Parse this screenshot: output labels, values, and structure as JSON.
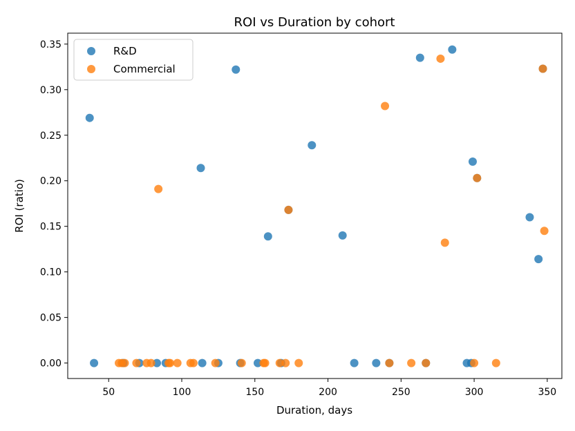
{
  "colors": {
    "rd": "#1f77b4",
    "commercial": "#ff7f0e"
  },
  "chart_data": {
    "type": "scatter",
    "title": "ROI vs Duration by cohort",
    "xlabel": "Duration, days",
    "ylabel": "ROI (ratio)",
    "xlim": [
      22,
      360
    ],
    "ylim": [
      -0.017,
      0.362
    ],
    "xticks": [
      50,
      100,
      150,
      200,
      250,
      300,
      350
    ],
    "yticks": [
      0.0,
      0.05,
      0.1,
      0.15,
      0.2,
      0.25,
      0.3,
      0.35
    ],
    "xtick_labels": [
      "50",
      "100",
      "150",
      "200",
      "250",
      "300",
      "350"
    ],
    "ytick_labels": [
      "0.00",
      "0.05",
      "0.10",
      "0.15",
      "0.20",
      "0.25",
      "0.30",
      "0.35"
    ],
    "legend_position": "upper-left",
    "grid": false,
    "series": [
      {
        "name": "R&D",
        "color": "#1f77b4",
        "points": [
          {
            "x": 37,
            "y": 0.269
          },
          {
            "x": 40,
            "y": 0.0
          },
          {
            "x": 60,
            "y": 0.0
          },
          {
            "x": 71,
            "y": 0.0
          },
          {
            "x": 83,
            "y": 0.0
          },
          {
            "x": 89,
            "y": 0.0
          },
          {
            "x": 113,
            "y": 0.214
          },
          {
            "x": 114,
            "y": 0.0
          },
          {
            "x": 125,
            "y": 0.0
          },
          {
            "x": 137,
            "y": 0.322
          },
          {
            "x": 140,
            "y": 0.0
          },
          {
            "x": 152,
            "y": 0.0
          },
          {
            "x": 159,
            "y": 0.139
          },
          {
            "x": 168,
            "y": 0.0
          },
          {
            "x": 173,
            "y": 0.168
          },
          {
            "x": 189,
            "y": 0.239
          },
          {
            "x": 210,
            "y": 0.14
          },
          {
            "x": 218,
            "y": 0.0
          },
          {
            "x": 233,
            "y": 0.0
          },
          {
            "x": 242,
            "y": 0.0
          },
          {
            "x": 263,
            "y": 0.335
          },
          {
            "x": 267,
            "y": 0.0
          },
          {
            "x": 285,
            "y": 0.344
          },
          {
            "x": 295,
            "y": 0.0
          },
          {
            "x": 298,
            "y": 0.0
          },
          {
            "x": 299,
            "y": 0.221
          },
          {
            "x": 302,
            "y": 0.203
          },
          {
            "x": 338,
            "y": 0.16
          },
          {
            "x": 344,
            "y": 0.114
          },
          {
            "x": 347,
            "y": 0.323
          }
        ]
      },
      {
        "name": "Commercial",
        "color": "#ff7f0e",
        "points": [
          {
            "x": 57,
            "y": 0.0
          },
          {
            "x": 59,
            "y": 0.0
          },
          {
            "x": 61,
            "y": 0.0
          },
          {
            "x": 69,
            "y": 0.0
          },
          {
            "x": 76,
            "y": 0.0
          },
          {
            "x": 79,
            "y": 0.0
          },
          {
            "x": 84,
            "y": 0.191
          },
          {
            "x": 91,
            "y": 0.0
          },
          {
            "x": 92,
            "y": 0.0
          },
          {
            "x": 97,
            "y": 0.0
          },
          {
            "x": 106,
            "y": 0.0
          },
          {
            "x": 108,
            "y": 0.0
          },
          {
            "x": 123,
            "y": 0.0
          },
          {
            "x": 141,
            "y": 0.0
          },
          {
            "x": 156,
            "y": 0.0
          },
          {
            "x": 157,
            "y": 0.0
          },
          {
            "x": 167,
            "y": 0.0
          },
          {
            "x": 171,
            "y": 0.0
          },
          {
            "x": 173,
            "y": 0.168
          },
          {
            "x": 180,
            "y": 0.0
          },
          {
            "x": 239,
            "y": 0.282
          },
          {
            "x": 242,
            "y": 0.0
          },
          {
            "x": 257,
            "y": 0.0
          },
          {
            "x": 267,
            "y": 0.0
          },
          {
            "x": 277,
            "y": 0.334
          },
          {
            "x": 280,
            "y": 0.132
          },
          {
            "x": 300,
            "y": 0.0
          },
          {
            "x": 302,
            "y": 0.203
          },
          {
            "x": 315,
            "y": 0.0
          },
          {
            "x": 347,
            "y": 0.323
          },
          {
            "x": 348,
            "y": 0.145
          }
        ]
      }
    ]
  }
}
